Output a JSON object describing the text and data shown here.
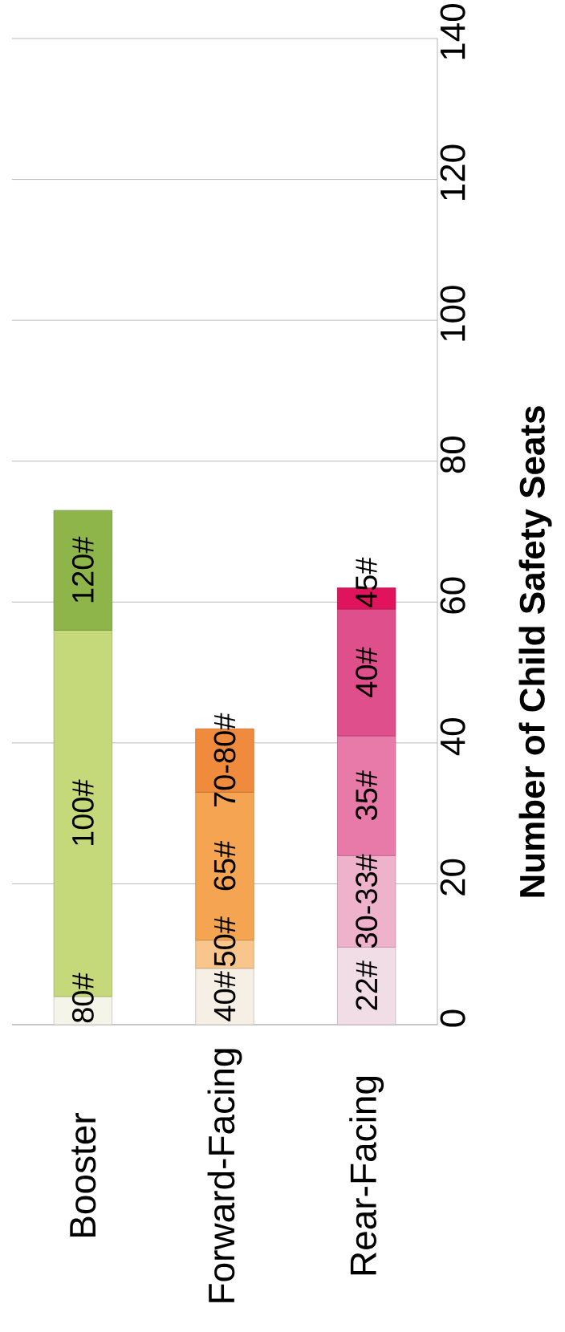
{
  "chart_data": {
    "type": "bar",
    "stacked": true,
    "categories": [
      "Booster",
      "Forward-Facing",
      "Rear-Facing"
    ],
    "ylabel": "Number of Child Safety Seats",
    "ylim": [
      0,
      140
    ],
    "yticks": [
      0,
      20,
      40,
      60,
      80,
      100,
      120,
      140
    ],
    "grid": "y",
    "series": [
      {
        "name": "80#",
        "color": "#f4f4e8",
        "values": [
          4,
          null,
          null
        ]
      },
      {
        "name": "100#",
        "color": "#c5d97a",
        "values": [
          52,
          null,
          null
        ]
      },
      {
        "name": "120#",
        "color": "#8db54a",
        "values": [
          17,
          null,
          null
        ]
      },
      {
        "name": "40#",
        "color": "#f6efe6",
        "values": [
          null,
          8,
          null
        ]
      },
      {
        "name": "50#",
        "color": "#f8c68c",
        "values": [
          null,
          4,
          null
        ]
      },
      {
        "name": "65#",
        "color": "#f5a452",
        "values": [
          null,
          21,
          null
        ]
      },
      {
        "name": "70-80#",
        "color": "#f08a3c",
        "values": [
          null,
          9,
          null
        ]
      },
      {
        "name": "22#",
        "color": "#f0dde6",
        "values": [
          null,
          null,
          11
        ]
      },
      {
        "name": "30-33#",
        "color": "#eeb2cb",
        "values": [
          null,
          null,
          13
        ]
      },
      {
        "name": "35#",
        "color": "#e87aaa",
        "values": [
          null,
          null,
          17
        ]
      },
      {
        "name": "40#",
        "color": "#df4f8c",
        "values": [
          null,
          null,
          18
        ]
      },
      {
        "name": "45#",
        "color": "#e0145c",
        "values": [
          null,
          null,
          3
        ]
      }
    ]
  }
}
